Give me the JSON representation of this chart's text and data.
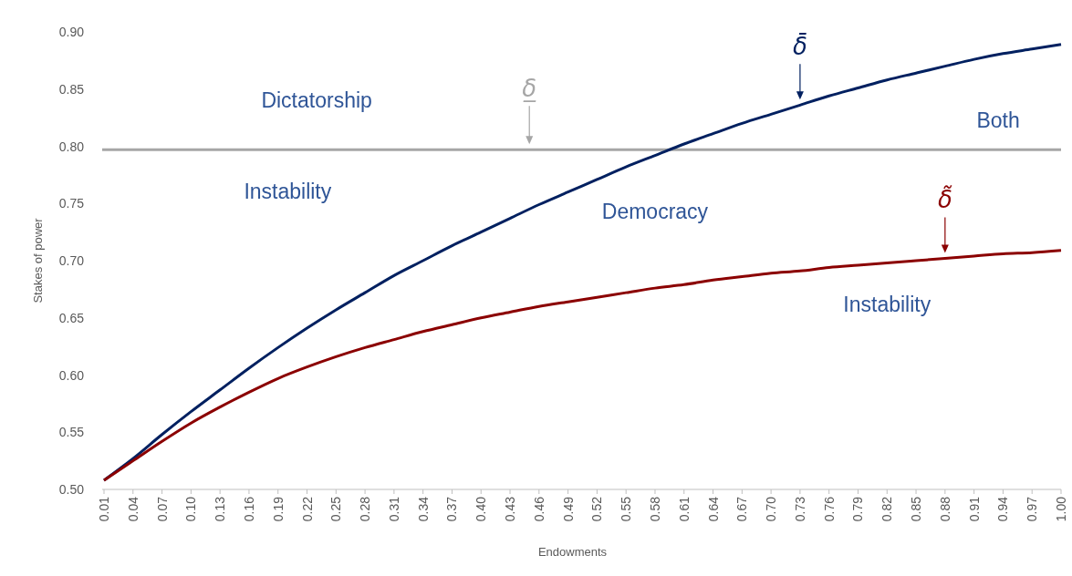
{
  "chart_data": {
    "type": "line",
    "xlabel": "Endowments",
    "ylabel": "Stakes of power",
    "x": [
      0.01,
      0.04,
      0.07,
      0.1,
      0.13,
      0.16,
      0.19,
      0.22,
      0.25,
      0.28,
      0.31,
      0.34,
      0.37,
      0.4,
      0.43,
      0.46,
      0.49,
      0.52,
      0.55,
      0.58,
      0.61,
      0.64,
      0.67,
      0.7,
      0.73,
      0.76,
      0.79,
      0.82,
      0.85,
      0.88,
      0.91,
      0.94,
      0.97,
      1.0
    ],
    "series": [
      {
        "name": "δ̄",
        "color": "#002060",
        "values": [
          0.508,
          0.527,
          0.548,
          0.568,
          0.587,
          0.606,
          0.624,
          0.641,
          0.657,
          0.672,
          0.687,
          0.7,
          0.713,
          0.725,
          0.737,
          0.749,
          0.76,
          0.771,
          0.782,
          0.792,
          0.802,
          0.811,
          0.82,
          0.828,
          0.836,
          0.844,
          0.851,
          0.858,
          0.864,
          0.87,
          0.876,
          0.881,
          0.885,
          0.889
        ]
      },
      {
        "name": "δ̃",
        "color": "#8b0000",
        "values": [
          0.508,
          0.525,
          0.542,
          0.558,
          0.572,
          0.585,
          0.597,
          0.607,
          0.616,
          0.624,
          0.631,
          0.638,
          0.644,
          0.65,
          0.655,
          0.66,
          0.664,
          0.668,
          0.672,
          0.676,
          0.679,
          0.683,
          0.686,
          0.689,
          0.691,
          0.694,
          0.696,
          0.698,
          0.7,
          0.702,
          0.704,
          0.706,
          0.707,
          0.709
        ]
      }
    ],
    "xlim": [
      0.01,
      1.0
    ],
    "xticks": [
      0.01,
      0.04,
      0.07,
      {
        "value": 0.1,
        "label": "0.10"
      },
      0.13,
      0.16,
      0.19,
      0.22,
      0.25,
      0.28,
      0.31,
      0.34,
      0.37,
      {
        "value": 0.4,
        "label": "0.40"
      },
      0.43,
      0.46,
      0.49,
      0.52,
      0.55,
      0.58,
      0.61,
      0.64,
      0.67,
      {
        "value": 0.7,
        "label": "0.70"
      },
      0.73,
      0.76,
      0.79,
      0.82,
      0.85,
      0.88,
      0.91,
      0.94,
      0.97,
      {
        "value": 1,
        "label": "1.00"
      }
    ],
    "ylim": [
      0.5,
      0.9
    ],
    "yticks": [
      {
        "value": 0.5,
        "label": "0.50"
      },
      {
        "value": 0.55,
        "label": "0.55"
      },
      {
        "value": 0.6,
        "label": "0.60"
      },
      {
        "value": 0.65,
        "label": "0.65"
      },
      {
        "value": 0.7,
        "label": "0.70"
      },
      {
        "value": 0.75,
        "label": "0.75"
      },
      {
        "value": 0.8,
        "label": "0.80"
      },
      {
        "value": 0.85,
        "label": "0.85"
      },
      {
        "value": 0.9,
        "label": "0.90"
      }
    ],
    "ref_lines": [
      {
        "axis": "y",
        "value": 0.797,
        "label": "δ̲",
        "color": "#a6a6a6"
      }
    ],
    "annotations": [
      "Dictatorship",
      "Instability",
      "Democracy",
      "Both",
      "Instability"
    ],
    "grid": false,
    "legend": false,
    "marker": "none",
    "line_style": "solid"
  }
}
